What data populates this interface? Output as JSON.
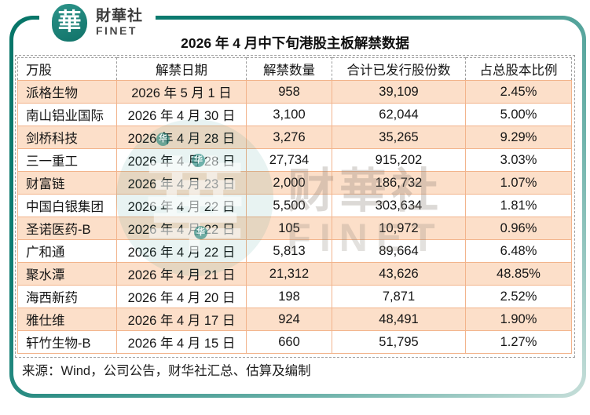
{
  "brand": {
    "seal_char": "華",
    "name_cn": "財華社",
    "name_en": "FINET"
  },
  "title": "2026 年 4 月中下旬港股主板解禁数据",
  "chart_data": {
    "type": "table",
    "title": "2026 年 4 月中下旬港股主板解禁数据",
    "unit_note": "万股",
    "columns": [
      "万股",
      "解禁日期",
      "解禁数量",
      "合计已发行股份数",
      "占总股本比例"
    ],
    "rows": [
      {
        "company": "派格生物",
        "date": "2026 年 5 月 1 日",
        "quantity": "958",
        "total_shares": "39,109",
        "pct": "2.45%"
      },
      {
        "company": "南山铝业国际",
        "date": "2026 年 4 月 30 日",
        "quantity": "3,100",
        "total_shares": "62,044",
        "pct": "5.00%"
      },
      {
        "company": "剑桥科技",
        "date": "2026 年 4 月 28 日",
        "quantity": "3,276",
        "total_shares": "35,265",
        "pct": "9.29%"
      },
      {
        "company": "三一重工",
        "date": "2026 年 4 月 28 日",
        "quantity": "27,734",
        "total_shares": "915,202",
        "pct": "3.03%"
      },
      {
        "company": "财富链",
        "date": "2026 年 4 月 23 日",
        "quantity": "2,000",
        "total_shares": "186,732",
        "pct": "1.07%"
      },
      {
        "company": "中国白银集团",
        "date": "2026 年 4 月 22 日",
        "quantity": "5,500",
        "total_shares": "303,634",
        "pct": "1.81%"
      },
      {
        "company": "圣诺医药-B",
        "date": "2026 年 4 月 22 日",
        "quantity": "105",
        "total_shares": "10,972",
        "pct": "0.96%"
      },
      {
        "company": "广和通",
        "date": "2026 年 4 月 22 日",
        "quantity": "5,813",
        "total_shares": "89,664",
        "pct": "6.48%"
      },
      {
        "company": "聚水潭",
        "date": "2026 年 4 月 21 日",
        "quantity": "21,312",
        "total_shares": "43,626",
        "pct": "48.85%"
      },
      {
        "company": "海西新药",
        "date": "2026 年 4 月 20 日",
        "quantity": "198",
        "total_shares": "7,871",
        "pct": "2.52%"
      },
      {
        "company": "雅仕维",
        "date": "2026 年 4 月 17 日",
        "quantity": "924",
        "total_shares": "48,491",
        "pct": "1.90%"
      },
      {
        "company": "轩竹生物-B",
        "date": "2026 年 4 月 15 日",
        "quantity": "660",
        "total_shares": "51,795",
        "pct": "1.27%"
      }
    ]
  },
  "source": "来源：Wind，公司公告，财华社汇总、估算及编制",
  "watermark": {
    "text_cn": "财華社",
    "text_en": "FINET",
    "seal_glyph": "华"
  },
  "colors": {
    "frame_teal_dark": "#067568",
    "frame_teal_light": "#c6ded9",
    "row_fill_peach": "#fcdfc9",
    "grid_orange": "#f2b48c",
    "header_dash_gray": "#9c9c9c"
  }
}
